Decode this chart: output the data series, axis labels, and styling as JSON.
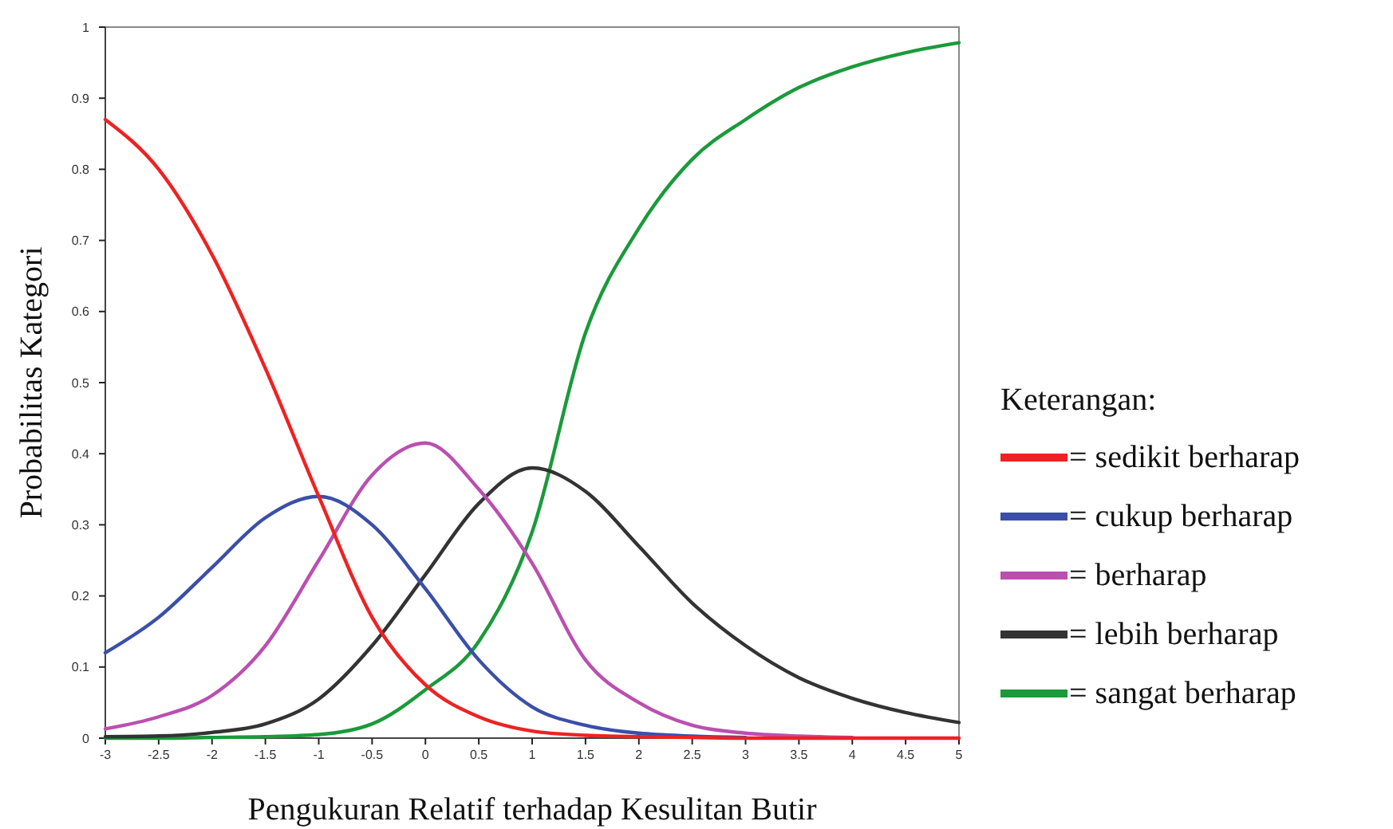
{
  "chart_data": {
    "type": "line",
    "xlabel": "Pengukuran Relatif terhadap Kesulitan Butir",
    "ylabel": "Probabilitas Kategori",
    "legend_title": "Keterangan:",
    "legend": "right",
    "marker": "none",
    "line_style": "solid",
    "x": [
      -3,
      -2.5,
      -2,
      -1.5,
      -1,
      -0.5,
      0,
      0.5,
      1,
      1.5,
      2,
      2.5,
      3,
      3.5,
      4,
      4.5,
      5
    ],
    "xlim": [
      -3,
      5
    ],
    "xticks": [
      -3,
      -2.5,
      -2,
      -1.5,
      -1,
      -0.5,
      0,
      0.5,
      1,
      1.5,
      2,
      2.5,
      3,
      3.5,
      4,
      4.5,
      5
    ],
    "ylim": [
      0,
      1
    ],
    "yticks": [
      0,
      0.1,
      0.2,
      0.3,
      0.4,
      0.5,
      0.6,
      0.7,
      0.8,
      0.9,
      1
    ],
    "series": [
      {
        "name": "= sedikit berharap",
        "color": "#ee2222",
        "values": [
          0.87,
          0.8,
          0.68,
          0.52,
          0.34,
          0.17,
          0.075,
          0.03,
          0.01,
          0.004,
          0.002,
          0.001,
          0,
          0,
          0,
          0,
          0
        ]
      },
      {
        "name": "= cukup berharap",
        "color": "#3b4fa8",
        "values": [
          0.12,
          0.17,
          0.24,
          0.31,
          0.34,
          0.3,
          0.21,
          0.11,
          0.044,
          0.018,
          0.007,
          0.003,
          0.001,
          null,
          null,
          null,
          null
        ]
      },
      {
        "name": "= berharap",
        "color": "#bb4fb0",
        "values": [
          0.013,
          0.03,
          0.06,
          0.13,
          0.25,
          0.37,
          0.415,
          0.35,
          0.246,
          0.11,
          0.05,
          0.018,
          0.007,
          0.003,
          0.001,
          null,
          null
        ]
      },
      {
        "name": "= lebih berharap",
        "color": "#333333",
        "values": [
          0.002,
          0.003,
          0.008,
          0.02,
          0.055,
          0.13,
          0.23,
          0.33,
          0.38,
          0.347,
          0.27,
          0.19,
          0.13,
          0.085,
          0.056,
          0.036,
          0.022
        ]
      },
      {
        "name": "= sangat berharap",
        "color": "#1a9a3a",
        "values": [
          0,
          0,
          0.001,
          0.002,
          0.005,
          0.02,
          0.068,
          0.136,
          0.29,
          0.57,
          0.717,
          0.814,
          0.87,
          0.915,
          0.944,
          0.964,
          0.978
        ]
      }
    ]
  }
}
